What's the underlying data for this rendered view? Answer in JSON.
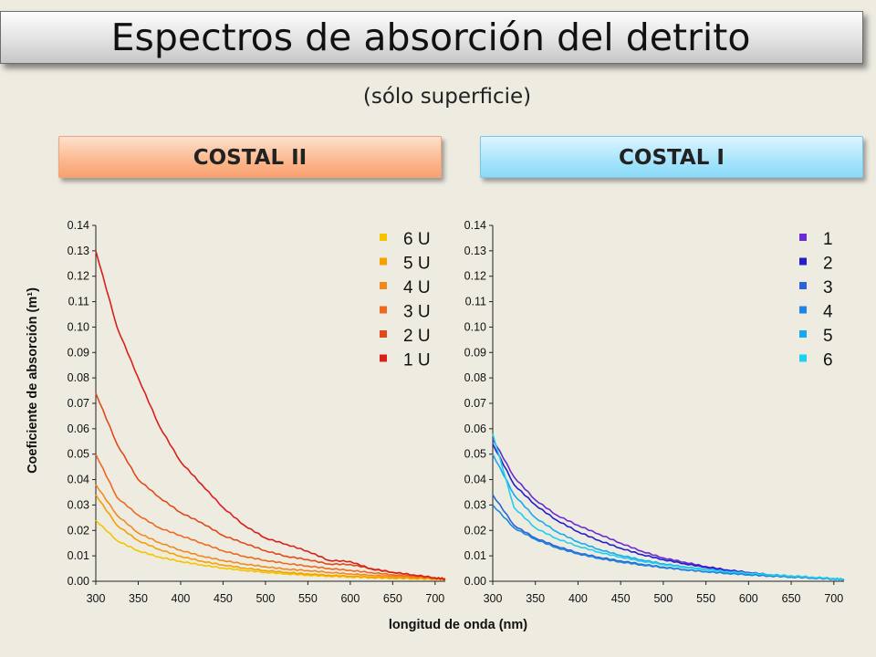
{
  "title": "Espectros de absorción del detrito",
  "subtitle": "(sólo superficie)",
  "badges": {
    "left": "COSTAL II",
    "right": "COSTAL I"
  },
  "colors": {
    "left_badge": "#fbb88e",
    "right_badge": "#a6e4fb"
  },
  "chart_data": [
    {
      "type": "line",
      "title": "COSTAL II",
      "xlabel": "longitud de onda (nm)",
      "ylabel": "Coeficiente de absorción (m¹)",
      "xlim": [
        300,
        712
      ],
      "ylim": [
        0,
        0.14
      ],
      "xticks": [
        "300",
        "350",
        "400",
        "450",
        "500",
        "550",
        "600",
        "650",
        "700"
      ],
      "yticks": [
        "0.00",
        "0.01",
        "0.02",
        "0.03",
        "0.04",
        "0.05",
        "0.06",
        "0.07",
        "0.08",
        "0.09",
        "0.10",
        "0.11",
        "0.12",
        "0.13",
        "0.14"
      ],
      "legend_position": "top-right",
      "grid": false,
      "x": [
        300,
        325,
        350,
        375,
        400,
        425,
        450,
        475,
        500,
        525,
        550,
        575,
        600,
        625,
        650,
        675,
        700,
        712
      ],
      "series": [
        {
          "name": "6 U",
          "color": "#f5c400",
          "values": [
            0.024,
            0.016,
            0.012,
            0.0095,
            0.0078,
            0.0064,
            0.0052,
            0.0043,
            0.0035,
            0.0029,
            0.0024,
            0.002,
            0.0017,
            0.0014,
            0.0012,
            0.001,
            0.0008,
            0.0007
          ]
        },
        {
          "name": "5 U",
          "color": "#f6a000",
          "values": [
            0.034,
            0.022,
            0.016,
            0.0125,
            0.0098,
            0.0079,
            0.0064,
            0.0052,
            0.0042,
            0.0035,
            0.0029,
            0.0024,
            0.002,
            0.0017,
            0.0014,
            0.0012,
            0.001,
            0.0009
          ]
        },
        {
          "name": "4 U",
          "color": "#f08a20",
          "values": [
            0.038,
            0.026,
            0.019,
            0.0152,
            0.0122,
            0.0099,
            0.0082,
            0.0068,
            0.0057,
            0.0048,
            0.0042,
            0.0035,
            0.0029,
            0.0024,
            0.002,
            0.0017,
            0.0013,
            0.0012
          ]
        },
        {
          "name": "3 U",
          "color": "#ec6a20",
          "values": [
            0.05,
            0.033,
            0.026,
            0.021,
            0.018,
            0.015,
            0.012,
            0.0098,
            0.0082,
            0.007,
            0.006,
            0.005,
            0.0043,
            0.0034,
            0.0026,
            0.0019,
            0.0012,
            0.0009
          ]
        },
        {
          "name": "2 U",
          "color": "#e04a1a",
          "values": [
            0.074,
            0.054,
            0.04,
            0.033,
            0.027,
            0.023,
            0.018,
            0.015,
            0.012,
            0.0098,
            0.0085,
            0.0068,
            0.0066,
            0.005,
            0.0036,
            0.0024,
            0.0012,
            0.0008
          ]
        },
        {
          "name": "1 U",
          "color": "#d8201a",
          "values": [
            0.13,
            0.1,
            0.08,
            0.061,
            0.047,
            0.038,
            0.029,
            0.022,
            0.017,
            0.0145,
            0.0118,
            0.0082,
            0.0078,
            0.0048,
            0.0035,
            0.0025,
            0.0014,
            0.0008
          ]
        }
      ]
    },
    {
      "type": "line",
      "title": "COSTAL I",
      "xlabel": "longitud de onda (nm)",
      "xlim": [
        300,
        712
      ],
      "ylim": [
        0,
        0.14
      ],
      "xticks": [
        "300",
        "350",
        "400",
        "450",
        "500",
        "550",
        "600",
        "650",
        "700"
      ],
      "yticks": [
        "0.00",
        "0.01",
        "0.02",
        "0.03",
        "0.04",
        "0.05",
        "0.06",
        "0.07",
        "0.08",
        "0.09",
        "0.10",
        "0.11",
        "0.12",
        "0.13",
        "0.14"
      ],
      "legend_position": "top-right",
      "grid": false,
      "x": [
        300,
        325,
        350,
        375,
        400,
        425,
        450,
        475,
        500,
        525,
        550,
        575,
        600,
        625,
        650,
        675,
        700,
        712
      ],
      "series": [
        {
          "name": "1",
          "color": "#6a2bd0",
          "values": [
            0.056,
            0.041,
            0.032,
            0.026,
            0.022,
            0.0185,
            0.015,
            0.0118,
            0.0092,
            0.0075,
            0.0058,
            0.0045,
            0.0035,
            0.0026,
            0.002,
            0.0015,
            0.001,
            0.0008
          ]
        },
        {
          "name": "2",
          "color": "#2020c8",
          "values": [
            0.054,
            0.038,
            0.03,
            0.024,
            0.0195,
            0.016,
            0.013,
            0.0105,
            0.0085,
            0.0069,
            0.0055,
            0.0043,
            0.0034,
            0.0026,
            0.002,
            0.0015,
            0.001,
            0.0008
          ]
        },
        {
          "name": "3",
          "color": "#2a64d6",
          "values": [
            0.034,
            0.022,
            0.017,
            0.0138,
            0.0112,
            0.0094,
            0.008,
            0.0067,
            0.0056,
            0.0046,
            0.0038,
            0.0032,
            0.0026,
            0.0021,
            0.0017,
            0.0013,
            0.0009,
            0.0007
          ]
        },
        {
          "name": "4",
          "color": "#1e86e0",
          "values": [
            0.03,
            0.021,
            0.0165,
            0.0132,
            0.0108,
            0.009,
            0.0076,
            0.0064,
            0.0054,
            0.0045,
            0.0038,
            0.0031,
            0.0026,
            0.0021,
            0.0017,
            0.0013,
            0.0009,
            0.0007
          ]
        },
        {
          "name": "5",
          "color": "#18aaf0",
          "values": [
            0.05,
            0.034,
            0.025,
            0.0195,
            0.0155,
            0.0125,
            0.0102,
            0.0084,
            0.0069,
            0.0057,
            0.0047,
            0.0039,
            0.0032,
            0.0026,
            0.0021,
            0.0016,
            0.0011,
            0.0008
          ]
        },
        {
          "name": "6",
          "color": "#1ed0ee",
          "values": [
            0.058,
            0.029,
            0.021,
            0.0168,
            0.0138,
            0.0114,
            0.0095,
            0.0079,
            0.0066,
            0.0055,
            0.0046,
            0.0038,
            0.0032,
            0.0026,
            0.0021,
            0.0016,
            0.0011,
            0.0008
          ]
        }
      ]
    }
  ]
}
